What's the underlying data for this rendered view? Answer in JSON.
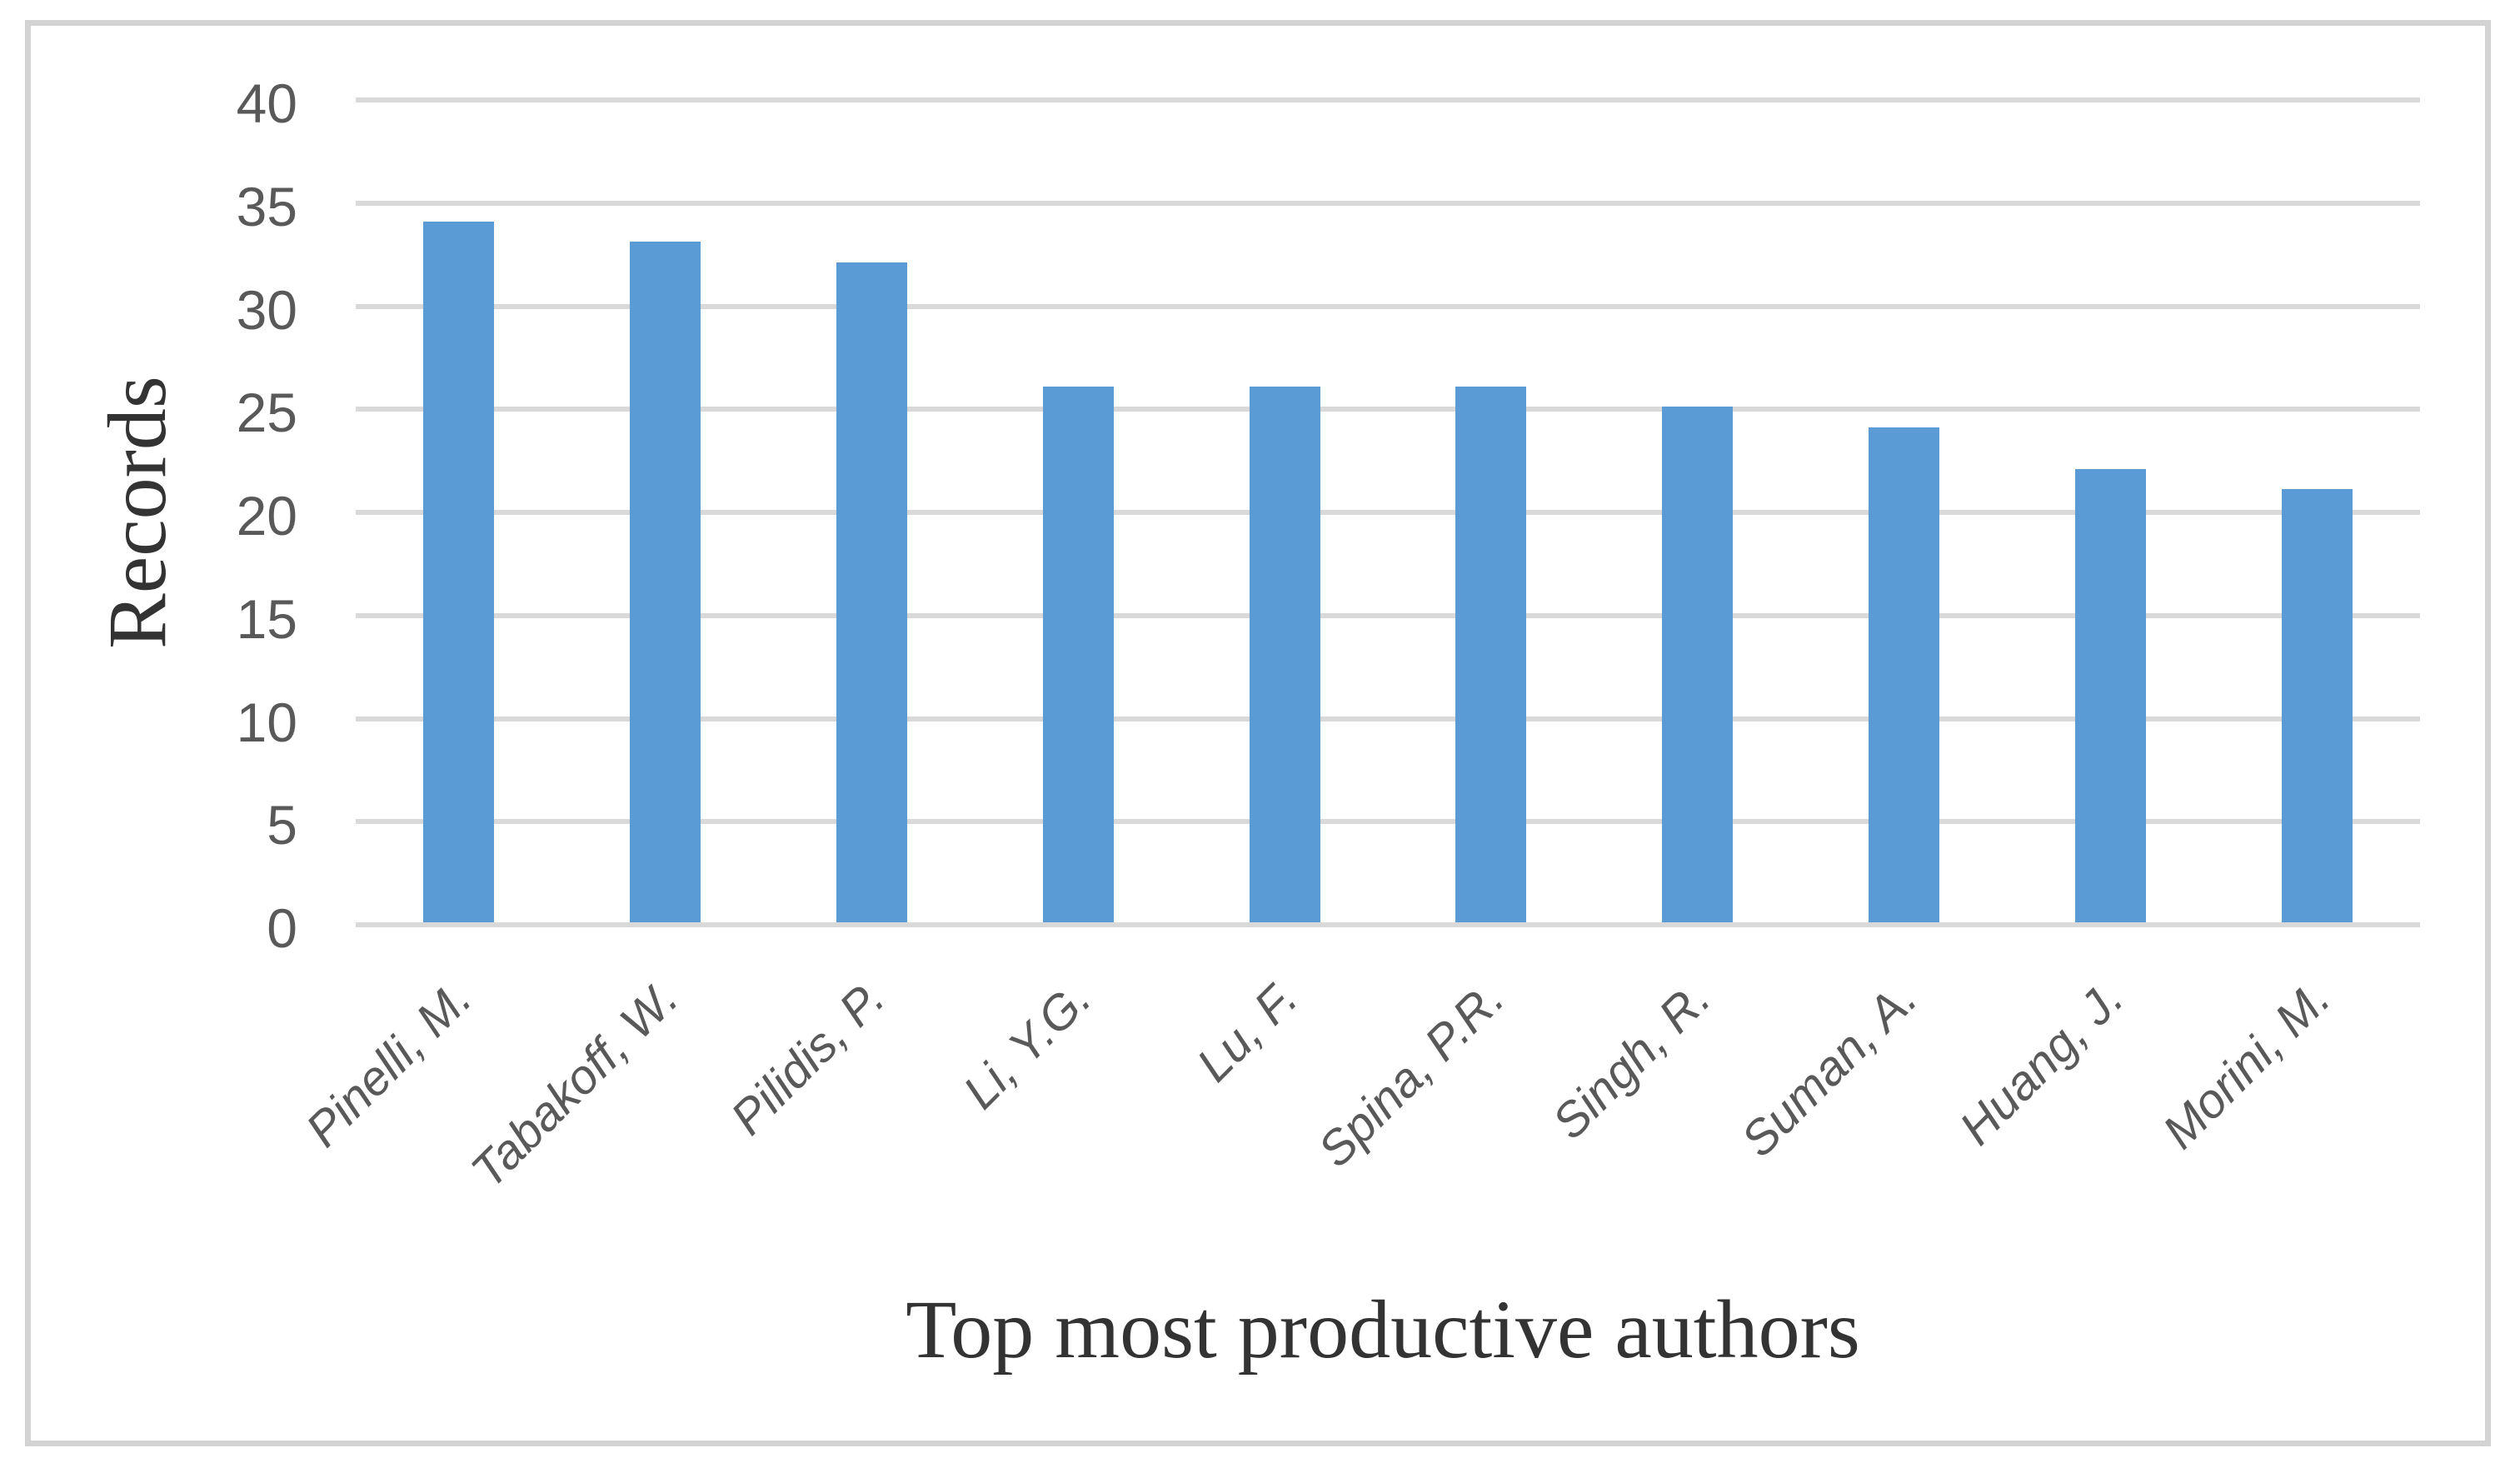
{
  "chart_data": {
    "type": "bar",
    "title": "",
    "categories": [
      "Pinelli, M.",
      "Tabakoff, W.",
      "Pilidis, P.",
      "Li, Y.G.",
      "Lu, F.",
      "Spina, P.R.",
      "Singh, R.",
      "Suman, A.",
      "Huang, J.",
      "Morini, M."
    ],
    "values": [
      34,
      33,
      32,
      26,
      26,
      26,
      25,
      24,
      22,
      21
    ],
    "xlabel": "Top most productive authors",
    "ylabel": "Records",
    "ylim": [
      0,
      40
    ],
    "yticks": [
      0,
      5,
      10,
      15,
      20,
      25,
      30,
      35,
      40
    ],
    "grid": true,
    "legend": false,
    "colors": {
      "bar": "#5b9bd5",
      "gridline": "#d9d9d9",
      "tick_label": "#595959",
      "category_label": "#595959",
      "axis_title": "#333333",
      "frame_border": "#d3d3d3",
      "background": "#ffffff"
    }
  }
}
